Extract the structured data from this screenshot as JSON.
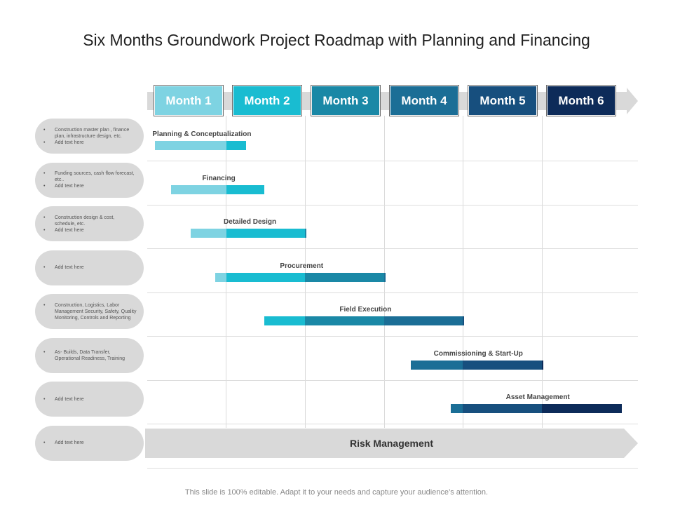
{
  "title": "Six Months Groundwork Project Roadmap with Planning and Financing",
  "months": [
    {
      "label": "Month 1",
      "color": "#7ed3e2"
    },
    {
      "label": "Month 2",
      "color": "#19bcd1"
    },
    {
      "label": "Month 3",
      "color": "#1a88a6"
    },
    {
      "label": "Month 4",
      "color": "#1b6e96"
    },
    {
      "label": "Month 5",
      "color": "#174f7e"
    },
    {
      "label": "Month 6",
      "color": "#0d2b59"
    }
  ],
  "rows": [
    {
      "notes": [
        "Construction master plan , finance plan, infrastructure design, etc.",
        "Add text here"
      ],
      "task": "Planning & Conceptualization",
      "start_month": 0.1,
      "end_month": 1.25
    },
    {
      "notes": [
        "Funding sources, cash flow forecast, etc..",
        "Add text here"
      ],
      "task": "Financing",
      "start_month": 0.3,
      "end_month": 1.48
    },
    {
      "notes": [
        "Construction design & cost, schedule, etc.",
        "Add text here"
      ],
      "task": "Detailed Design",
      "start_month": 0.55,
      "end_month": 2.02
    },
    {
      "notes": [
        "Add text here"
      ],
      "task": "Procurement",
      "start_month": 0.86,
      "end_month": 3.02
    },
    {
      "notes": [
        "Construction, Logistics, Labor Management Security, Safety, Quality Monitoring, Controls and Reporting"
      ],
      "task": "Field Execution",
      "start_month": 1.48,
      "end_month": 4.02
    },
    {
      "notes": [
        "As- Builds, Data Transfer, Operational Readiness, Training"
      ],
      "task": "Commissioning & Start-Up",
      "start_month": 3.34,
      "end_month": 5.02
    },
    {
      "notes": [
        "Add text here"
      ],
      "task": "Asset Management",
      "start_month": 3.85,
      "end_month": 6.02
    },
    {
      "notes": [
        "Add text here"
      ],
      "task": "Risk Management",
      "risk_arrow": true
    }
  ],
  "footer": "This slide is 100% editable. Adapt it to your needs and capture your audience’s attention."
}
